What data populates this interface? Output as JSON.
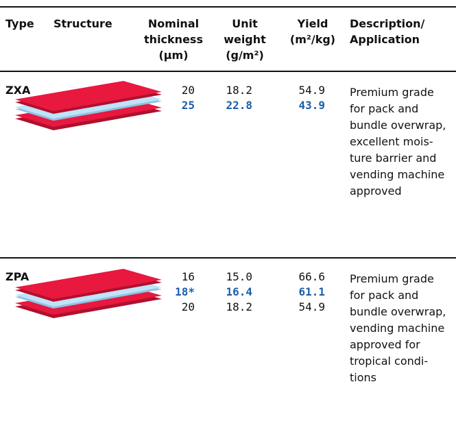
{
  "table": {
    "header": [
      [
        "Type"
      ],
      [
        "Structure"
      ],
      [
        "Nominal",
        "thickness",
        "(μm)"
      ],
      [
        "Unit",
        "weight",
        "(g/m²)"
      ],
      [
        "Yield",
        "(m²/kg)"
      ],
      [
        "Description/",
        "Application"
      ]
    ],
    "rows": [
      {
        "type": "ZXA",
        "highlight": 1,
        "thickness": [
          "20",
          "25"
        ],
        "weight": [
          "18.2",
          "22.8"
        ],
        "yield": [
          "54.9",
          "43.9"
        ],
        "description": [
          "Premium grade",
          "for pack and",
          "bundle overwrap,",
          "excellent mois-",
          "ture barrier and",
          "vending machine",
          "approved"
        ]
      },
      {
        "type": "ZPA",
        "highlight": 1,
        "thickness": [
          "16",
          "18*",
          "20"
        ],
        "weight": [
          "15.0",
          "16.4",
          "18.2"
        ],
        "yield": [
          "66.6",
          "61.1",
          "54.9"
        ],
        "description": [
          "Premium grade",
          "for pack and",
          "bundle overwrap,",
          "vending machine",
          "approved for",
          "tropical condi-",
          "tions"
        ]
      }
    ]
  }
}
